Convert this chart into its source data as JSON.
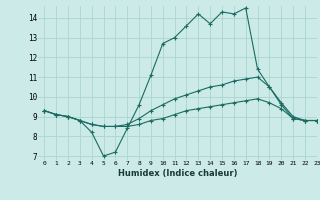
{
  "xlabel": "Humidex (Indice chaleur)",
  "xlim": [
    -0.5,
    23
  ],
  "ylim": [
    6.8,
    14.6
  ],
  "yticks": [
    7,
    8,
    9,
    10,
    11,
    12,
    13,
    14
  ],
  "xticks": [
    0,
    1,
    2,
    3,
    4,
    5,
    6,
    7,
    8,
    9,
    10,
    11,
    12,
    13,
    14,
    15,
    16,
    17,
    18,
    19,
    20,
    21,
    22,
    23
  ],
  "bg_color": "#cceae7",
  "grid_color": "#aad4d0",
  "line_color": "#1a6b62",
  "line1_x": [
    0,
    1,
    2,
    3,
    4,
    5,
    6,
    7,
    8,
    9,
    10,
    11,
    12,
    13,
    14,
    15,
    16,
    17,
    18,
    19,
    20,
    21,
    22,
    23
  ],
  "line1_y": [
    9.3,
    9.1,
    9.0,
    8.8,
    8.2,
    7.0,
    7.2,
    8.4,
    9.6,
    11.1,
    12.7,
    13.0,
    13.6,
    14.2,
    13.7,
    14.3,
    14.2,
    14.5,
    11.4,
    10.5,
    9.6,
    8.9,
    8.8,
    8.8
  ],
  "line2_x": [
    0,
    1,
    2,
    3,
    4,
    5,
    6,
    7,
    8,
    9,
    10,
    11,
    12,
    13,
    14,
    15,
    16,
    17,
    18,
    19,
    20,
    21,
    22,
    23
  ],
  "line2_y": [
    9.3,
    9.1,
    9.0,
    8.8,
    8.6,
    8.5,
    8.5,
    8.6,
    8.9,
    9.3,
    9.6,
    9.9,
    10.1,
    10.3,
    10.5,
    10.6,
    10.8,
    10.9,
    11.0,
    10.5,
    9.7,
    9.0,
    8.8,
    8.8
  ],
  "line3_x": [
    0,
    1,
    2,
    3,
    4,
    5,
    6,
    7,
    8,
    9,
    10,
    11,
    12,
    13,
    14,
    15,
    16,
    17,
    18,
    19,
    20,
    21,
    22,
    23
  ],
  "line3_y": [
    9.3,
    9.1,
    9.0,
    8.8,
    8.6,
    8.5,
    8.5,
    8.5,
    8.6,
    8.8,
    8.9,
    9.1,
    9.3,
    9.4,
    9.5,
    9.6,
    9.7,
    9.8,
    9.9,
    9.7,
    9.4,
    8.9,
    8.8,
    8.8
  ]
}
